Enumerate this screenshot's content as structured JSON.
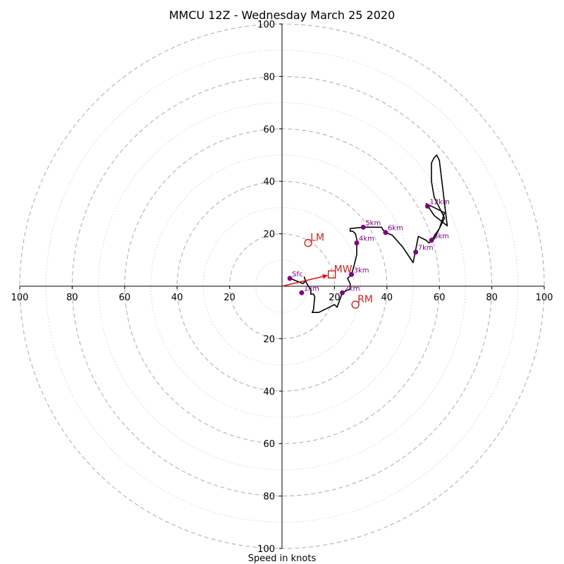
{
  "chart_data": {
    "type": "scatter",
    "title": "MMCU 12Z - Wednesday March 25 2020",
    "xlabel": "Speed in knots",
    "ylabel": "",
    "xlim": [
      -100,
      100
    ],
    "ylim": [
      -100,
      100
    ],
    "ring_ticks": [
      "20",
      "40",
      "60",
      "80",
      "100"
    ],
    "x_tick_labels": [
      "100",
      "80",
      "60",
      "40",
      "20",
      "20",
      "40",
      "60",
      "80",
      "100"
    ],
    "y_tick_labels_top": [
      "100",
      "80",
      "60",
      "40",
      "20"
    ],
    "y_tick_labels_bottom": [
      "20",
      "40",
      "60",
      "80",
      "100"
    ],
    "hodograph_line": [
      [
        3,
        3
      ],
      [
        8,
        1
      ],
      [
        9,
        2
      ],
      [
        8.5,
        3.5
      ],
      [
        9,
        2
      ],
      [
        10,
        0
      ],
      [
        11,
        -1
      ],
      [
        11,
        -3
      ],
      [
        12,
        -3
      ],
      [
        12.5,
        -4
      ],
      [
        12,
        -9
      ],
      [
        11.5,
        -10
      ],
      [
        14,
        -10
      ],
      [
        18,
        -8
      ],
      [
        20,
        -7
      ],
      [
        21,
        -8
      ],
      [
        23,
        -2.5
      ],
      [
        26,
        -1
      ],
      [
        26,
        1
      ],
      [
        25,
        3
      ],
      [
        26.5,
        4.5
      ],
      [
        27.5,
        8
      ],
      [
        28.5,
        12
      ],
      [
        28.5,
        15.5
      ],
      [
        28.7,
        17
      ],
      [
        28,
        20
      ],
      [
        27,
        21
      ],
      [
        26,
        21
      ],
      [
        26,
        22
      ],
      [
        31,
        22.5
      ],
      [
        38,
        22.5
      ],
      [
        38.5,
        21.5
      ],
      [
        39.5,
        20.5
      ],
      [
        42,
        19.5
      ],
      [
        46,
        15
      ],
      [
        50,
        9
      ],
      [
        51,
        14
      ],
      [
        52,
        19
      ],
      [
        55,
        17.5
      ],
      [
        56,
        16.5
      ],
      [
        58,
        18
      ],
      [
        62,
        26
      ],
      [
        58,
        34
      ],
      [
        57,
        40
      ],
      [
        57,
        47
      ],
      [
        58,
        49
      ],
      [
        59,
        50
      ],
      [
        60,
        48
      ],
      [
        63,
        23
      ],
      [
        58,
        27
      ],
      [
        55,
        31.5
      ],
      [
        62,
        28
      ],
      [
        60,
        22
      ],
      [
        57,
        17.5
      ]
    ],
    "series": [
      {
        "name": "heights",
        "color": "#800080",
        "points": [
          {
            "label": "Sfc",
            "x": 3,
            "y": 3
          },
          {
            "label": "1km",
            "x": 7.5,
            "y": -2.5
          },
          {
            "label": "2km",
            "x": 23,
            "y": -2.5
          },
          {
            "label": "3km",
            "x": 26.5,
            "y": 4.5
          },
          {
            "label": "4km",
            "x": 28.5,
            "y": 16.5
          },
          {
            "label": "5km",
            "x": 31,
            "y": 22.5
          },
          {
            "label": "6km",
            "x": 39.5,
            "y": 20.5
          },
          {
            "label": "7km",
            "x": 51,
            "y": 13
          },
          {
            "label": "8km",
            "x": 57,
            "y": 17.5
          },
          {
            "label": "12km",
            "x": 55.5,
            "y": 30.5
          }
        ]
      }
    ],
    "motion_markers": [
      {
        "label": "LM",
        "x": 10,
        "y": 16.5,
        "shape": "circle"
      },
      {
        "label": "MW",
        "x": 19,
        "y": 4.5,
        "shape": "square"
      },
      {
        "label": "RM",
        "x": 28,
        "y": -7,
        "shape": "circle"
      }
    ],
    "mean_wind_arrow": {
      "from": [
        0,
        0
      ],
      "to": [
        19,
        4.5
      ]
    },
    "colors": {
      "heights": "#800080",
      "markers": "#cc2222",
      "line": "#000000",
      "grid": "#bbbbbb"
    }
  }
}
